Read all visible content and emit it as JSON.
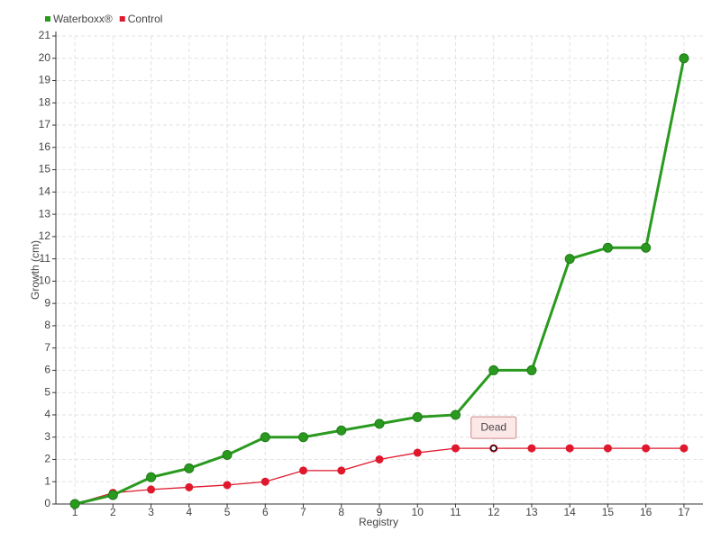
{
  "chart_data": {
    "type": "line",
    "y_label": "Growth (cm)",
    "x_label": "Registry",
    "categories": [
      "1",
      "2",
      "3",
      "4",
      "5",
      "6",
      "7",
      "8",
      "9",
      "10",
      "11",
      "12",
      "13",
      "14",
      "15",
      "16",
      "17"
    ],
    "series": [
      {
        "name": "Waterboxx®",
        "color": "#2a9a1f",
        "values": [
          0,
          0.4,
          1.2,
          1.6,
          2.2,
          3,
          3,
          3.3,
          3.6,
          3.9,
          4,
          6,
          6,
          11,
          11.5,
          11.5,
          20
        ]
      },
      {
        "name": "Control",
        "color": "#e0182d",
        "values": [
          0,
          0.5,
          0.65,
          0.75,
          0.85,
          1,
          1.5,
          1.5,
          2,
          2.3,
          2.5,
          2.5,
          2.5,
          2.5,
          2.5,
          2.5,
          2.5
        ]
      }
    ],
    "ylim": [
      0,
      21
    ],
    "yticks": [
      0,
      1,
      2,
      3,
      4,
      5,
      6,
      7,
      8,
      9,
      10,
      11,
      12,
      13,
      14,
      15,
      16,
      17,
      18,
      19,
      20,
      21
    ],
    "grid": true,
    "annotation": {
      "text": "Dead",
      "category": "12"
    }
  }
}
